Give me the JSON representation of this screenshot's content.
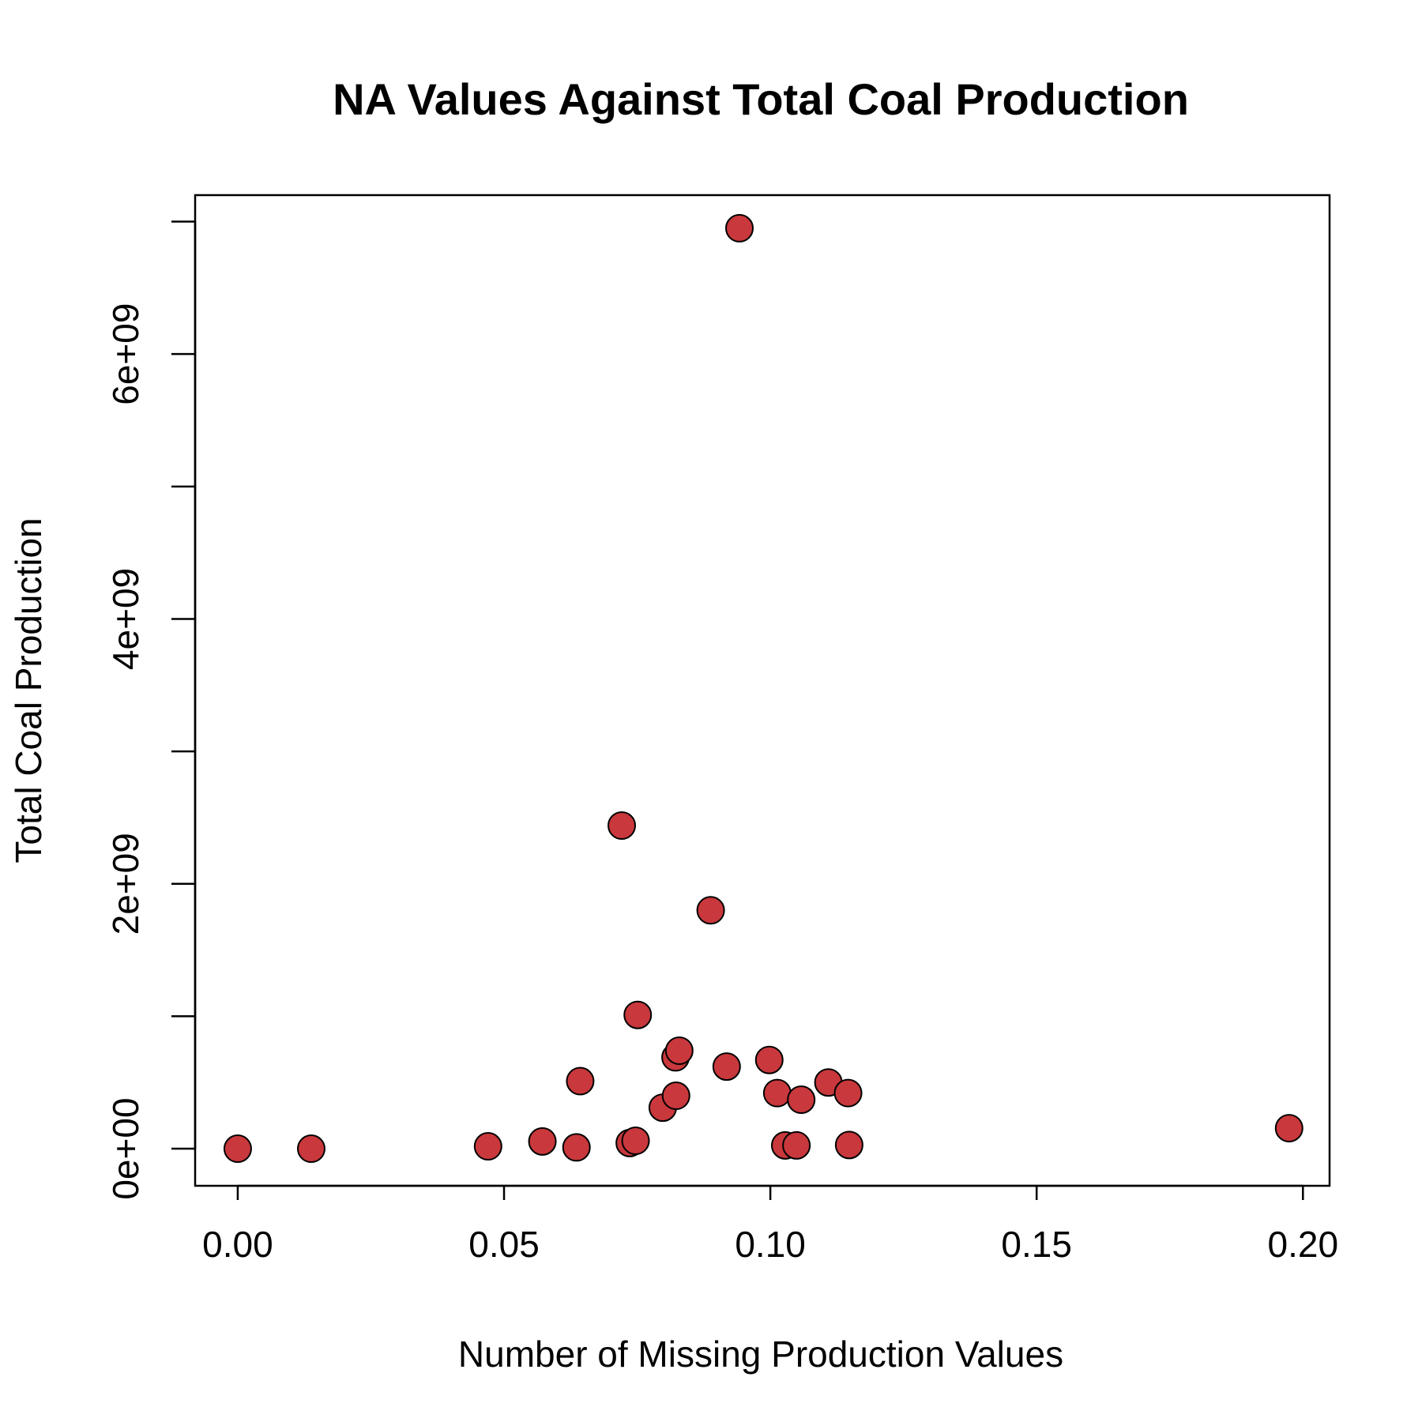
{
  "chart_data": {
    "type": "scatter",
    "title": "NA Values Against Total Coal Production",
    "xlabel": "Number of Missing Production Values",
    "ylabel": "Total Coal Production",
    "xlim": [
      -0.008,
      0.205
    ],
    "ylim": [
      -280000000.0,
      7200000000.0
    ],
    "x_ticks": [
      {
        "value": 0.0,
        "label": "0.00"
      },
      {
        "value": 0.05,
        "label": "0.05"
      },
      {
        "value": 0.1,
        "label": "0.10"
      },
      {
        "value": 0.15,
        "label": "0.15"
      },
      {
        "value": 0.2,
        "label": "0.20"
      }
    ],
    "y_ticks": [
      {
        "value": 0,
        "label": "0e+00"
      },
      {
        "value": 1000000000,
        "label": ""
      },
      {
        "value": 2000000000,
        "label": "2e+09"
      },
      {
        "value": 3000000000,
        "label": ""
      },
      {
        "value": 4000000000,
        "label": "4e+09"
      },
      {
        "value": 5000000000,
        "label": ""
      },
      {
        "value": 6000000000,
        "label": "6e+09"
      },
      {
        "value": 7000000000,
        "label": ""
      }
    ],
    "grid": false,
    "marker_fill": "#c8383c",
    "marker_edge": "#000000",
    "points": [
      {
        "x": 0.0,
        "y": 0
      },
      {
        "x": 0.0138,
        "y": 0
      },
      {
        "x": 0.047,
        "y": 18000000.0
      },
      {
        "x": 0.0572,
        "y": 55000000.0
      },
      {
        "x": 0.0636,
        "y": 10000000.0
      },
      {
        "x": 0.0643,
        "y": 510000000.0
      },
      {
        "x": 0.0721,
        "y": 2440000000.0
      },
      {
        "x": 0.0736,
        "y": 43000000.0
      },
      {
        "x": 0.0747,
        "y": 60000000.0
      },
      {
        "x": 0.0751,
        "y": 1010000000.0
      },
      {
        "x": 0.0798,
        "y": 310000000.0
      },
      {
        "x": 0.0822,
        "y": 690000000.0
      },
      {
        "x": 0.0823,
        "y": 400000000.0
      },
      {
        "x": 0.0829,
        "y": 740000000.0
      },
      {
        "x": 0.0888,
        "y": 1800000000.0
      },
      {
        "x": 0.0918,
        "y": 620000000.0
      },
      {
        "x": 0.0942,
        "y": 6950000000.0
      },
      {
        "x": 0.0998,
        "y": 670000000.0
      },
      {
        "x": 0.1013,
        "y": 420000000.0
      },
      {
        "x": 0.1028,
        "y": 25000000.0
      },
      {
        "x": 0.1049,
        "y": 25000000.0
      },
      {
        "x": 0.1058,
        "y": 370000000.0
      },
      {
        "x": 0.1109,
        "y": 500000000.0
      },
      {
        "x": 0.1146,
        "y": 420000000.0
      },
      {
        "x": 0.1148,
        "y": 28000000.0
      },
      {
        "x": 0.1974,
        "y": 155000000.0
      }
    ]
  }
}
